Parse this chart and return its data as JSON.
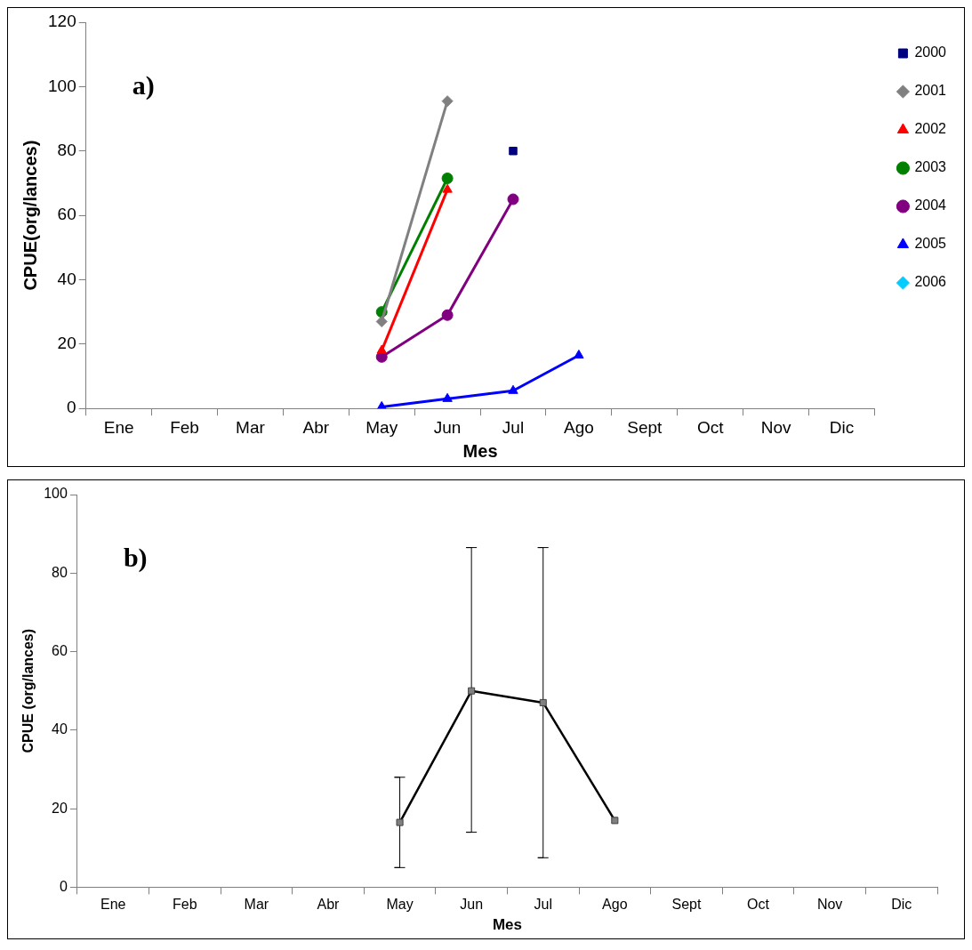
{
  "chart_data": [
    {
      "type": "line",
      "xlabel": "Mes",
      "ylabel": "CPUE(org/lances)",
      "annotations": [
        "a)"
      ],
      "categories": [
        "Ene",
        "Feb",
        "Mar",
        "Abr",
        "May",
        "Jun",
        "Jul",
        "Ago",
        "Sept",
        "Oct",
        "Nov",
        "Dic"
      ],
      "ylim": [
        0,
        120
      ],
      "yticks": [
        0,
        20,
        40,
        60,
        80,
        100,
        120
      ],
      "grid": false,
      "legend": "right",
      "series": [
        {
          "name": "2000",
          "color": "#000080",
          "marker": "square",
          "values": [
            null,
            null,
            null,
            null,
            null,
            null,
            80,
            null,
            null,
            null,
            null,
            null
          ]
        },
        {
          "name": "2001",
          "color": "#808080",
          "marker": "diamond",
          "values": [
            null,
            null,
            null,
            null,
            27,
            95.5,
            null,
            null,
            null,
            null,
            null,
            null
          ]
        },
        {
          "name": "2002",
          "color": "#ff0000",
          "marker": "triangle",
          "values": [
            null,
            null,
            null,
            null,
            18,
            68,
            null,
            null,
            null,
            null,
            null,
            null
          ]
        },
        {
          "name": "2003",
          "color": "#008000",
          "marker": "circle",
          "values": [
            null,
            null,
            null,
            null,
            30,
            71.5,
            null,
            null,
            null,
            null,
            null,
            null
          ]
        },
        {
          "name": "2004",
          "color": "#800080",
          "marker": "circle",
          "values": [
            null,
            null,
            null,
            null,
            16,
            29,
            65,
            null,
            null,
            null,
            null,
            null
          ]
        },
        {
          "name": "2005",
          "color": "#0000ff",
          "marker": "triangle",
          "values": [
            null,
            null,
            null,
            null,
            0.5,
            3,
            5.5,
            16.5,
            null,
            null,
            null,
            null
          ]
        },
        {
          "name": "2006",
          "color": "#00ccff",
          "marker": "diamond",
          "values": [
            null,
            null,
            null,
            null,
            null,
            null,
            null,
            null,
            null,
            null,
            null,
            null
          ]
        }
      ]
    },
    {
      "type": "line",
      "xlabel": "Mes",
      "ylabel": "CPUE (org/lances)",
      "annotations": [
        "b)"
      ],
      "categories": [
        "Ene",
        "Feb",
        "Mar",
        "Abr",
        "May",
        "Jun",
        "Jul",
        "Ago",
        "Sept",
        "Oct",
        "Nov",
        "Dic"
      ],
      "ylim": [
        0,
        100
      ],
      "yticks": [
        0,
        20,
        40,
        60,
        80,
        100
      ],
      "grid": false,
      "legend": false,
      "marker": "square",
      "series": [
        {
          "color": "#000000",
          "values": [
            null,
            null,
            null,
            null,
            16.5,
            50,
            47,
            17,
            null,
            null,
            null,
            null
          ],
          "errors": [
            null,
            null,
            null,
            null,
            [
              5,
              28
            ],
            [
              14,
              86.5
            ],
            [
              7.5,
              86.5
            ],
            null,
            null,
            null,
            null,
            null
          ]
        }
      ]
    }
  ]
}
